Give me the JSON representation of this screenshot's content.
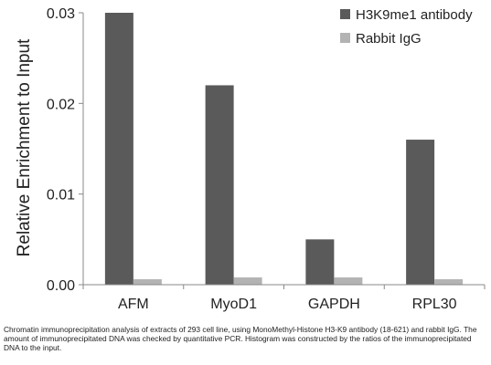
{
  "chart_data": {
    "type": "bar",
    "categories": [
      "AFM",
      "MyoD1",
      "GAPDH",
      "RPL30"
    ],
    "series": [
      {
        "name": "H3K9me1 antibody",
        "values": [
          0.03,
          0.022,
          0.005,
          0.016
        ],
        "color": "#5a5a5a"
      },
      {
        "name": "Rabbit IgG",
        "values": [
          0.0006,
          0.0008,
          0.0008,
          0.0006
        ],
        "color": "#b3b3b3"
      }
    ],
    "ylabel": "Relative Enrichment to Input",
    "xlabel": "",
    "ylim": [
      0,
      0.03
    ],
    "yticks": [
      "0.00",
      "0.01",
      "0.02",
      "0.03"
    ],
    "grid": false,
    "legend_position": "top-right"
  },
  "caption": "Chromatin immunoprecipitation analysis of extracts of 293 cell line, using MonoMethyl-Histone H3-K9 antibody (18-621) and rabbit IgG. The amount of immunoprecipitated DNA was checked by quantitative PCR. Histogram was constructed by the ratios of the immunoprecipitated DNA to the input."
}
